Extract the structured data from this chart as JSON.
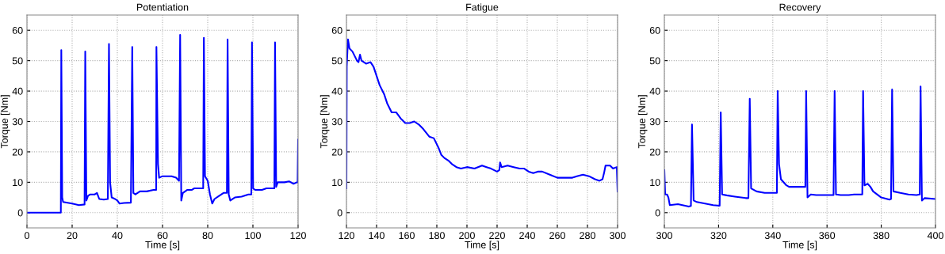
{
  "chart_data": [
    {
      "type": "line",
      "title": "Potentiation",
      "xlabel": "Time [s]",
      "ylabel": "Torque [Nm]",
      "xlim": [
        0,
        120
      ],
      "xticks": [
        0,
        20,
        40,
        60,
        80,
        100,
        120
      ],
      "ylim": [
        -5,
        65
      ],
      "yticks": [
        0,
        10,
        20,
        30,
        40,
        50,
        60
      ],
      "grid": true,
      "series": [
        {
          "color": "#0000ff",
          "x": [
            0,
            15,
            15.2,
            15.6,
            16,
            20,
            23,
            25.5,
            25.8,
            26.3,
            27,
            28,
            30,
            31,
            32,
            34,
            35.8,
            36.3,
            36.8,
            37.5,
            39,
            40,
            41,
            43,
            46,
            46.6,
            47.1,
            48,
            50,
            53,
            56,
            57.2,
            57.3,
            58,
            58.5,
            60,
            64,
            66,
            67.3,
            67.8,
            68.3,
            69,
            71,
            73,
            74,
            77,
            78,
            78.3,
            78.8,
            80,
            81,
            82,
            83,
            85,
            87,
            88.5,
            88.8,
            89.3,
            90,
            92,
            95,
            98,
            99.3,
            99.6,
            100.1,
            101,
            104,
            106,
            109.5,
            109.8,
            110.3,
            111,
            114,
            116,
            118,
            119.5,
            119.8,
            120
          ],
          "values": [
            0,
            0,
            53.5,
            5,
            3.5,
            3,
            2.5,
            2.7,
            53,
            4,
            5.5,
            6,
            6,
            6.5,
            4.5,
            4.3,
            4.5,
            55.5,
            10,
            5,
            4.5,
            4,
            3,
            3.2,
            3.3,
            54.5,
            6.5,
            6,
            7,
            7,
            7.5,
            7.5,
            54.5,
            16,
            11.5,
            12,
            12,
            11.5,
            10.5,
            58.5,
            4,
            6.5,
            7.5,
            7.5,
            8,
            8,
            8,
            57.5,
            12,
            10.5,
            6,
            3,
            4.5,
            5.5,
            6.5,
            6.5,
            57,
            6,
            4,
            5,
            5.3,
            6,
            6,
            56,
            8,
            7.5,
            7.5,
            8,
            8,
            56,
            8.5,
            10,
            10,
            10.3,
            9.5,
            10,
            10,
            24
          ]
        }
      ]
    },
    {
      "type": "line",
      "title": "Fatigue",
      "xlabel": "Time [s]",
      "ylabel": "Torque [Nm]",
      "xlim": [
        120,
        300
      ],
      "xticks": [
        120,
        140,
        160,
        180,
        200,
        220,
        240,
        260,
        280,
        300
      ],
      "ylim": [
        -5,
        65
      ],
      "yticks": [
        0,
        10,
        20,
        30,
        40,
        50,
        60
      ],
      "grid": true,
      "series": [
        {
          "color": "#0000ff",
          "x": [
            120,
            120.2,
            121,
            122,
            124,
            127,
            128,
            129,
            130,
            133,
            136,
            138,
            140,
            142,
            145,
            147,
            150,
            153,
            156,
            159,
            162,
            165,
            168,
            171,
            175,
            178,
            181,
            183,
            185,
            188,
            190,
            193,
            196,
            200,
            205,
            210,
            213,
            216,
            220,
            221.5,
            222,
            223,
            227,
            231,
            235,
            238,
            241,
            244,
            247,
            250,
            255,
            260,
            265,
            270,
            273,
            277,
            281,
            285,
            288,
            290,
            291,
            292,
            295,
            297,
            299.5,
            300
          ],
          "values": [
            8,
            48,
            57,
            54,
            53,
            50,
            49.5,
            52,
            50,
            49,
            49.5,
            48,
            45,
            42,
            39,
            36,
            33,
            33,
            31,
            29.5,
            29.5,
            30,
            29,
            27.5,
            25,
            24.5,
            21.5,
            19,
            18,
            17,
            16,
            15,
            14.5,
            15,
            14.5,
            15.5,
            15,
            14.5,
            13.5,
            14,
            16.5,
            15,
            15.5,
            15,
            14.5,
            14.5,
            13.5,
            13,
            13.5,
            13.5,
            12.5,
            11.5,
            11.5,
            11.5,
            12,
            12.5,
            12,
            11,
            10.5,
            11,
            13,
            15.5,
            15.5,
            14.5,
            15,
            7
          ]
        }
      ]
    },
    {
      "type": "line",
      "title": "Recovery",
      "xlabel": "Time [s]",
      "ylabel": "Torque [Nm]",
      "xlim": [
        300,
        400
      ],
      "xticks": [
        300,
        320,
        340,
        360,
        380,
        400
      ],
      "ylim": [
        -5,
        65
      ],
      "yticks": [
        0,
        10,
        20,
        30,
        40,
        50,
        60
      ],
      "grid": true,
      "series": [
        {
          "color": "#0000ff",
          "x": [
            300,
            300.3,
            301,
            301.5,
            302,
            305,
            308,
            309,
            309.8,
            310.2,
            310.8,
            312,
            315,
            318,
            320.4,
            320.8,
            321.3,
            323,
            326,
            330,
            331,
            331.5,
            332,
            334,
            337,
            340,
            341.5,
            341.8,
            342.3,
            343,
            345,
            346,
            348,
            350,
            352,
            352.3,
            352.8,
            354,
            356,
            360,
            362.4,
            362.8,
            363.3,
            365,
            368,
            370,
            373,
            373.3,
            373.8,
            375,
            376,
            377,
            380,
            383,
            383.6,
            384,
            384.5,
            387,
            390,
            393,
            394.2,
            394.5,
            395,
            396,
            400
          ],
          "values": [
            14,
            6,
            6,
            5,
            2.5,
            2.8,
            2.2,
            2,
            2.2,
            29,
            4,
            3.5,
            3,
            2.5,
            2.3,
            33,
            6,
            5.7,
            5.3,
            4.8,
            4.8,
            37.5,
            8,
            7,
            6.5,
            6.5,
            6.5,
            40,
            16,
            11,
            9,
            8.5,
            8.5,
            8.5,
            8.5,
            40,
            5,
            6,
            5.8,
            5.8,
            5.8,
            40,
            6,
            5.8,
            5.8,
            6,
            6,
            40,
            9,
            9.5,
            8.5,
            7,
            5,
            4.3,
            4.5,
            40.5,
            7,
            6.5,
            6,
            5.8,
            6,
            41.5,
            4,
            4.8,
            4.5
          ]
        }
      ]
    }
  ]
}
